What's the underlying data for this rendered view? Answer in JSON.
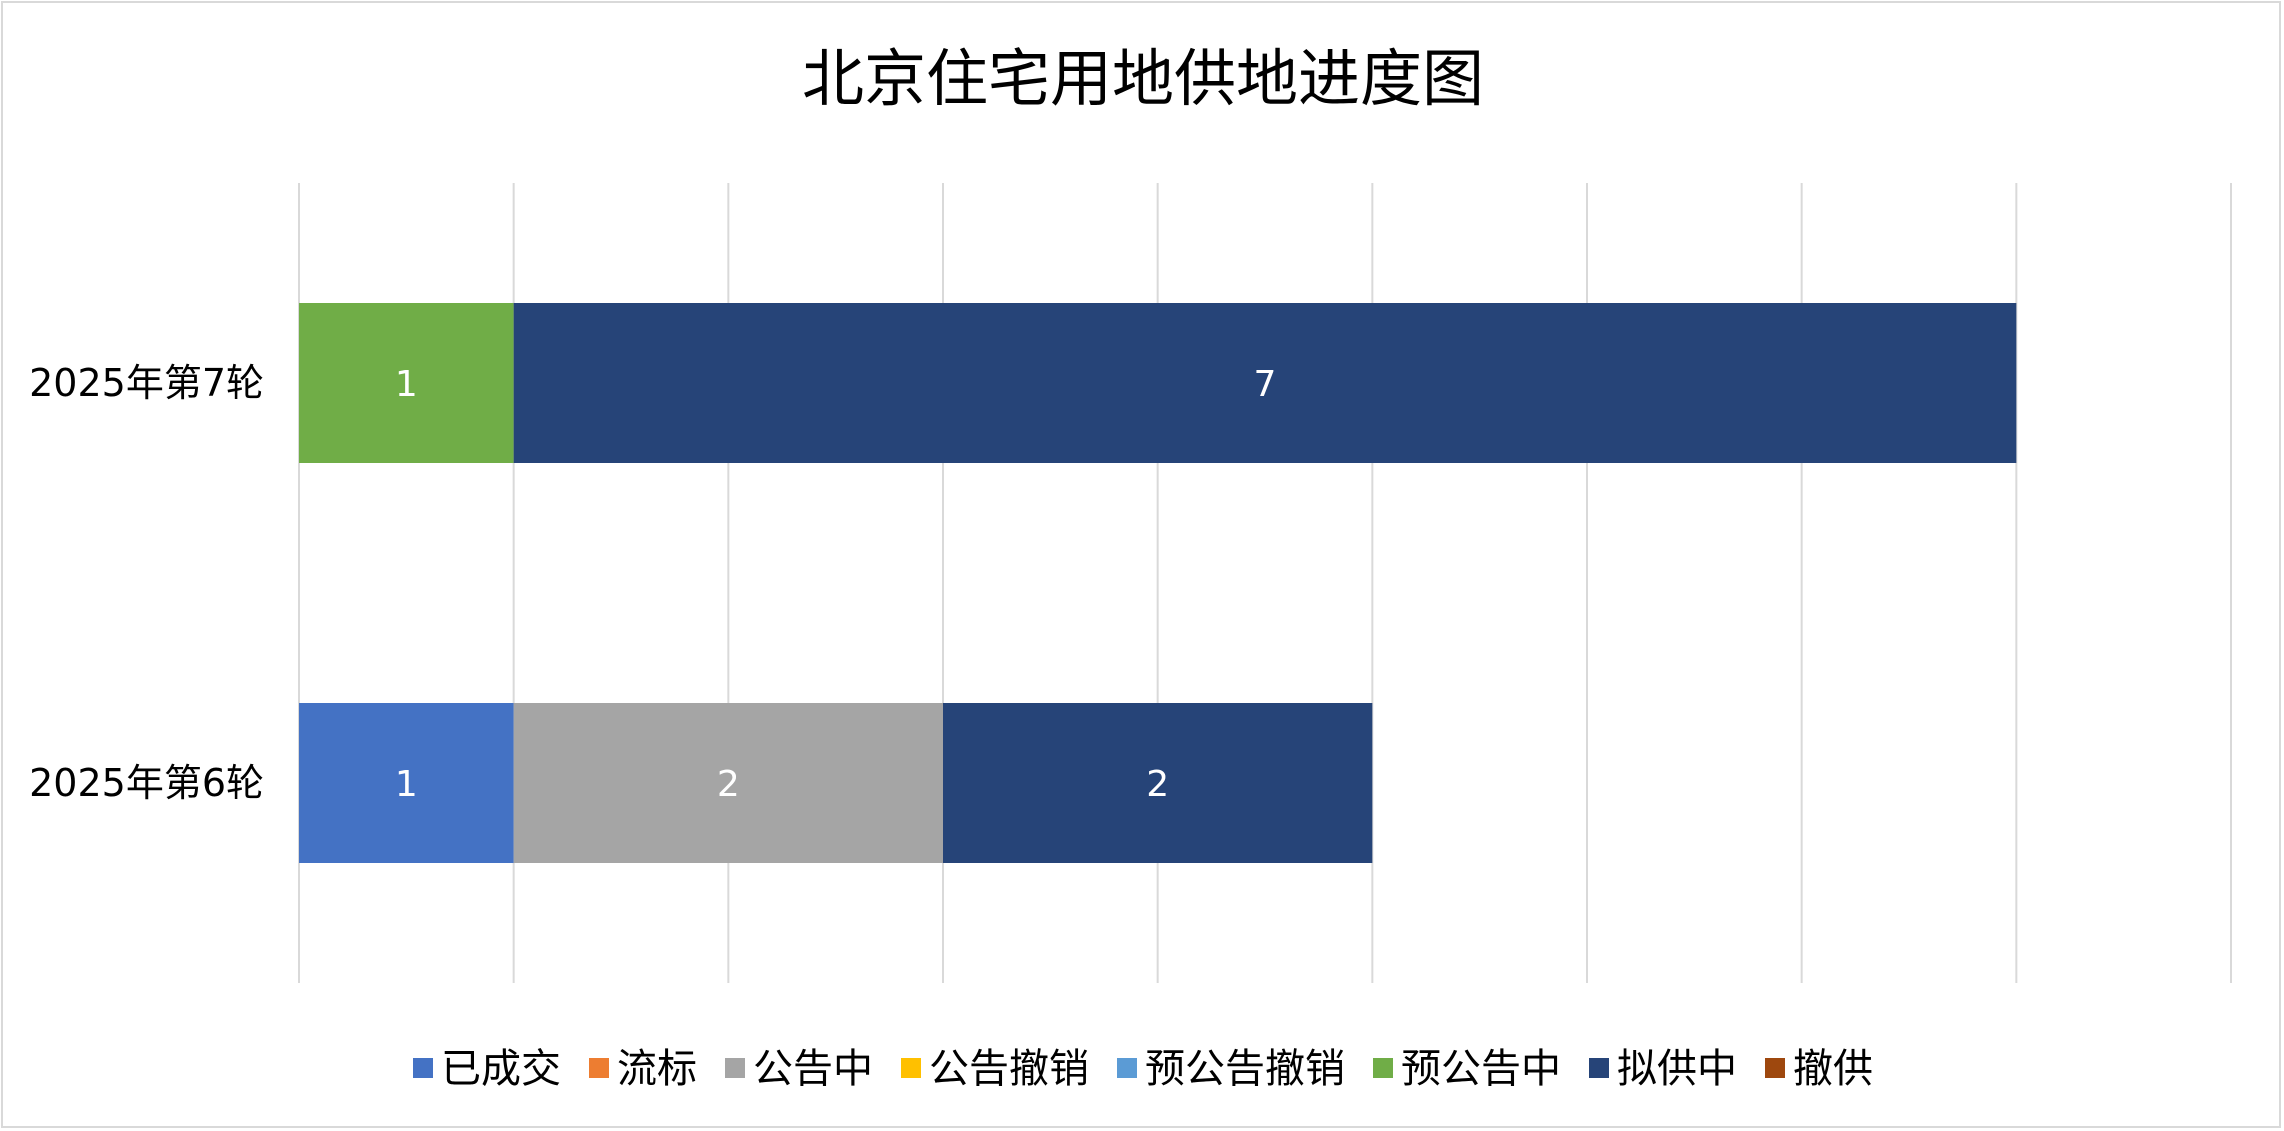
{
  "chart_data": {
    "type": "bar",
    "orientation": "horizontal",
    "stacked": true,
    "title": "北京住宅用地供地进度图",
    "categories": [
      "2025年第7轮",
      "2025年第6轮"
    ],
    "xlim": [
      0,
      9
    ],
    "grid": true,
    "legend_position": "bottom",
    "series": [
      {
        "name": "已成交",
        "color": "#4472C4",
        "values": [
          0,
          1
        ]
      },
      {
        "name": "流标",
        "color": "#ED7D31",
        "values": [
          0,
          0
        ]
      },
      {
        "name": "公告中",
        "color": "#A5A5A5",
        "values": [
          0,
          2
        ]
      },
      {
        "name": "公告撤销",
        "color": "#FFC000",
        "values": [
          0,
          0
        ]
      },
      {
        "name": "预公告撤销",
        "color": "#5B9BD5",
        "values": [
          0,
          0
        ]
      },
      {
        "name": "预公告中",
        "color": "#70AD47",
        "values": [
          1,
          0
        ]
      },
      {
        "name": "拟供中",
        "color": "#264478",
        "values": [
          7,
          2
        ]
      },
      {
        "name": "撤供",
        "color": "#9E480E",
        "values": [
          0,
          0
        ]
      }
    ]
  }
}
